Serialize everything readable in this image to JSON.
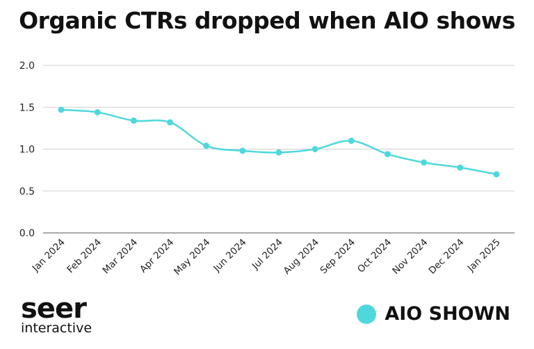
{
  "chart_data": {
    "type": "line",
    "title": "Organic CTRs dropped when AIO shows",
    "categories": [
      "Jan 2024",
      "Feb 2024",
      "Mar 2024",
      "Apr 2024",
      "May 2024",
      "Jun 2024",
      "Jul 2024",
      "Aug 2024",
      "Sep 2024",
      "Oct 2024",
      "Nov 2024",
      "Dec 2024",
      "Jan 2025"
    ],
    "series": [
      {
        "name": "AIO SHOWN",
        "color": "#4fd8dc",
        "values": [
          1.47,
          1.44,
          1.34,
          1.32,
          1.04,
          0.98,
          0.96,
          1.0,
          1.1,
          0.94,
          0.84,
          0.78,
          0.7
        ]
      }
    ],
    "ylim": [
      0,
      2.0
    ],
    "yticks": [
      "0.0",
      "0.5",
      "1.0",
      "1.5",
      "2.0"
    ],
    "xlabel": "",
    "ylabel": "",
    "grid": true,
    "legend_position": "bottom-right"
  },
  "branding": {
    "logo_main": "seer",
    "logo_sub": "interactive"
  }
}
